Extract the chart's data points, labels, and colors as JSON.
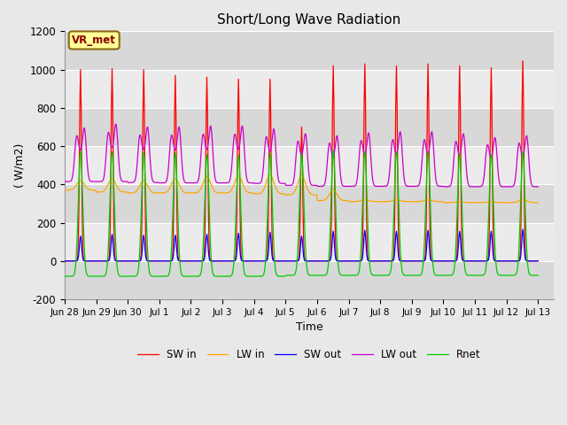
{
  "title": "Short/Long Wave Radiation",
  "xlabel": "Time",
  "ylabel": "( W/m2)",
  "ylim": [
    -200,
    1200
  ],
  "yticks": [
    -200,
    0,
    200,
    400,
    600,
    800,
    1000,
    1200
  ],
  "annotation_text": "VR_met",
  "annotation_color": "#8B0000",
  "annotation_bg": "#FFFF99",
  "annotation_border": "#8B6914",
  "bg_color": "#E8E8E8",
  "plot_bg_light": "#EBEBEB",
  "plot_bg_dark": "#D8D8D8",
  "colors": {
    "SW_in": "#FF0000",
    "LW_in": "#FFA500",
    "SW_out": "#0000FF",
    "LW_out": "#CC00CC",
    "Rnet": "#00CC00"
  },
  "x_tick_labels": [
    "Jun 28",
    "Jun 29",
    "Jun 30",
    "Jul 1",
    "Jul 2",
    "Jul 3",
    "Jul 4",
    "Jul 5",
    "Jul 6",
    "Jul 7",
    "Jul 8",
    "Jul 9",
    "Jul 10",
    "Jul 11",
    "Jul 12",
    "Jul 13"
  ],
  "sw_in_peaks": [
    1000,
    1005,
    1000,
    970,
    960,
    950,
    950,
    700,
    1020,
    1030,
    1020,
    1030,
    1020,
    1010,
    1045
  ],
  "sw_out_peaks": [
    130,
    140,
    135,
    135,
    140,
    145,
    150,
    130,
    155,
    160,
    155,
    160,
    155,
    155,
    165
  ],
  "lw_in_day": [
    420,
    430,
    420,
    430,
    440,
    445,
    450,
    445,
    370,
    320,
    320,
    320,
    310,
    310,
    320
  ],
  "lw_in_night": [
    370,
    360,
    355,
    355,
    355,
    355,
    350,
    345,
    315,
    310,
    310,
    310,
    305,
    305,
    305
  ],
  "lw_out_peak": [
    690,
    710,
    695,
    695,
    700,
    700,
    685,
    660,
    650,
    665,
    670,
    670,
    660,
    640,
    650
  ],
  "lw_out_night": [
    415,
    415,
    410,
    408,
    408,
    408,
    405,
    395,
    390,
    390,
    390,
    390,
    388,
    388,
    388
  ],
  "rnet_peak": [
    575,
    570,
    570,
    565,
    555,
    555,
    565,
    560,
    580,
    570,
    570,
    570,
    560,
    555,
    570
  ],
  "rnet_night": [
    -80,
    -80,
    -80,
    -80,
    -80,
    -80,
    -80,
    -75,
    -75,
    -75,
    -75,
    -75,
    -75,
    -75,
    -75
  ]
}
